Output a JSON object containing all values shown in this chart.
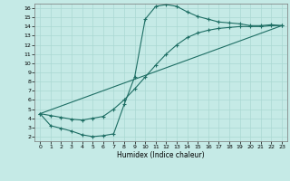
{
  "xlabel": "Humidex (Indice chaleur)",
  "bg_color": "#c5eae6",
  "grid_color": "#aad8d2",
  "line_color": "#1e6e64",
  "xlim": [
    -0.5,
    23.5
  ],
  "ylim": [
    1.5,
    16.5
  ],
  "xticks": [
    0,
    1,
    2,
    3,
    4,
    5,
    6,
    7,
    8,
    9,
    10,
    11,
    12,
    13,
    14,
    15,
    16,
    17,
    18,
    19,
    20,
    21,
    22,
    23
  ],
  "yticks": [
    2,
    3,
    4,
    5,
    6,
    7,
    8,
    9,
    10,
    11,
    12,
    13,
    14,
    15,
    16
  ],
  "curve1_x": [
    0,
    1,
    2,
    3,
    4,
    5,
    6,
    7,
    8,
    9,
    10,
    11,
    12,
    13,
    14,
    15,
    16,
    17,
    18,
    19,
    20,
    21,
    22,
    23
  ],
  "curve1_y": [
    4.5,
    3.2,
    2.9,
    2.6,
    2.2,
    2.0,
    2.1,
    2.3,
    5.5,
    8.5,
    14.8,
    16.2,
    16.4,
    16.2,
    15.6,
    15.1,
    14.8,
    14.5,
    14.4,
    14.3,
    14.1,
    14.1,
    14.2,
    14.1
  ],
  "curve2_x": [
    0,
    1,
    2,
    3,
    4,
    5,
    6,
    7,
    8,
    9,
    10,
    11,
    12,
    13,
    14,
    15,
    16,
    17,
    18,
    19,
    20,
    21,
    22,
    23
  ],
  "curve2_y": [
    4.5,
    4.3,
    4.1,
    3.9,
    3.8,
    4.0,
    4.2,
    5.0,
    6.0,
    7.2,
    8.5,
    9.8,
    11.0,
    12.0,
    12.8,
    13.3,
    13.6,
    13.8,
    13.9,
    14.0,
    14.0,
    14.0,
    14.1,
    14.1
  ],
  "curve3_x": [
    0,
    23
  ],
  "curve3_y": [
    4.5,
    14.1
  ]
}
